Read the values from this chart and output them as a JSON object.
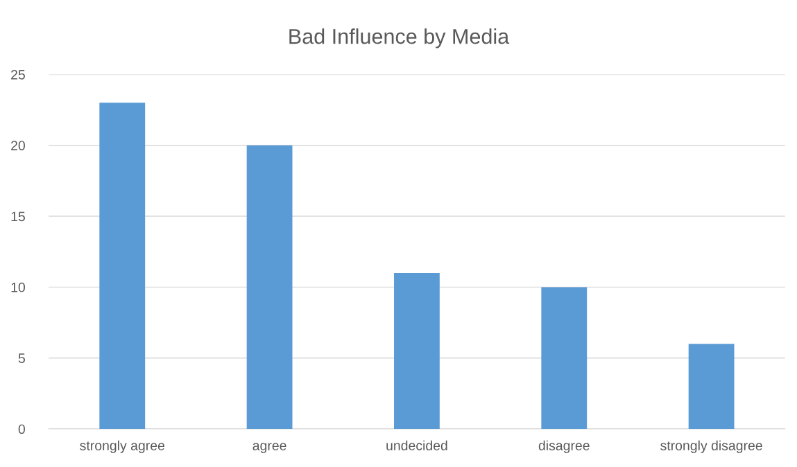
{
  "chart_data": {
    "type": "bar",
    "title": "Bad Influence by Media",
    "categories": [
      "strongly agree",
      "agree",
      "undecided",
      "disagree",
      "strongly disagree"
    ],
    "values": [
      23,
      20,
      11,
      10,
      6
    ],
    "color": "#5b9bd5",
    "ylim": [
      0,
      25
    ],
    "yticks": [
      0,
      5,
      10,
      15,
      20,
      25
    ],
    "grid": "y",
    "legend": false
  }
}
